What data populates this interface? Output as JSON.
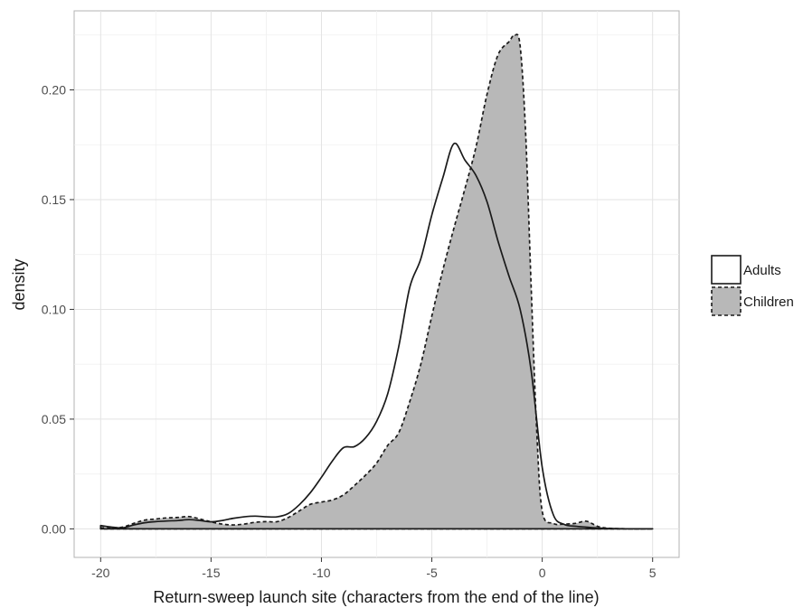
{
  "chart_data": {
    "type": "area",
    "title": "",
    "xlabel": "Return-sweep launch site (characters from the end of the line)",
    "ylabel": "density",
    "xlim": [
      -21.2,
      6.2
    ],
    "ylim": [
      -0.013,
      0.236
    ],
    "x_ticks": [
      -20,
      -15,
      -10,
      -5,
      0,
      5
    ],
    "x_tick_labels": [
      "-20",
      "-15",
      "-10",
      "-5",
      "0",
      "5"
    ],
    "y_ticks": [
      0.0,
      0.05,
      0.1,
      0.15,
      0.2
    ],
    "y_tick_labels": [
      "0.00",
      "0.05",
      "0.10",
      "0.15",
      "0.20"
    ],
    "grid": true,
    "legend_position": "right",
    "series": [
      {
        "name": "Adults",
        "fill": "#ffffff",
        "line_style": "solid",
        "x": [
          -20,
          -19.5,
          -19,
          -18.5,
          -18,
          -17.5,
          -17,
          -16.5,
          -16,
          -15.5,
          -15,
          -14.5,
          -14,
          -13.5,
          -13,
          -12.5,
          -12,
          -11.5,
          -11,
          -10.5,
          -10,
          -9.5,
          -9,
          -8.5,
          -8,
          -7.5,
          -7,
          -6.5,
          -6,
          -5.5,
          -5,
          -4.5,
          -4,
          -3.5,
          -3,
          -2.5,
          -2,
          -1.5,
          -1,
          -0.5,
          0,
          0.5,
          1,
          1.5,
          2,
          2.5,
          3,
          4,
          5
        ],
        "y": [
          0.0015,
          0.0008,
          0.0005,
          0.0018,
          0.0028,
          0.0033,
          0.0036,
          0.0038,
          0.0042,
          0.0038,
          0.0032,
          0.0038,
          0.0048,
          0.0055,
          0.0058,
          0.0055,
          0.0055,
          0.007,
          0.011,
          0.0165,
          0.0235,
          0.031,
          0.037,
          0.0375,
          0.0415,
          0.049,
          0.0615,
          0.083,
          0.11,
          0.123,
          0.143,
          0.16,
          0.1755,
          0.168,
          0.161,
          0.149,
          0.131,
          0.115,
          0.1,
          0.072,
          0.028,
          0.0065,
          0.002,
          0.0012,
          0.0008,
          0.0004,
          0.0002,
          0.0,
          0.0
        ]
      },
      {
        "name": "Children",
        "fill": "#b8b8b8",
        "line_style": "dashed",
        "x": [
          -20,
          -19.5,
          -19,
          -18.5,
          -18,
          -17.5,
          -17,
          -16.5,
          -16,
          -15.5,
          -15,
          -14.5,
          -14,
          -13.5,
          -13,
          -12.5,
          -12,
          -11.5,
          -11,
          -10.5,
          -10,
          -9.5,
          -9,
          -8.5,
          -8,
          -7.5,
          -7,
          -6.5,
          -6,
          -5.5,
          -5,
          -4.5,
          -4,
          -3.5,
          -3,
          -2.5,
          -2,
          -1.5,
          -1.25,
          -1,
          -0.75,
          -0.5,
          -0.25,
          0,
          0.5,
          1,
          1.5,
          2,
          2.5,
          3,
          4,
          5
        ],
        "y": [
          0.0005,
          0.0005,
          0.0008,
          0.0025,
          0.004,
          0.0045,
          0.005,
          0.0052,
          0.0056,
          0.0045,
          0.0032,
          0.0022,
          0.0018,
          0.0022,
          0.003,
          0.0033,
          0.0033,
          0.0052,
          0.0082,
          0.0112,
          0.0122,
          0.0132,
          0.0155,
          0.0198,
          0.0245,
          0.03,
          0.038,
          0.0438,
          0.058,
          0.075,
          0.097,
          0.118,
          0.137,
          0.155,
          0.174,
          0.198,
          0.216,
          0.222,
          0.225,
          0.22,
          0.18,
          0.11,
          0.045,
          0.008,
          0.0025,
          0.0022,
          0.0025,
          0.0035,
          0.0012,
          0.0003,
          0.0,
          0.0
        ]
      }
    ]
  }
}
